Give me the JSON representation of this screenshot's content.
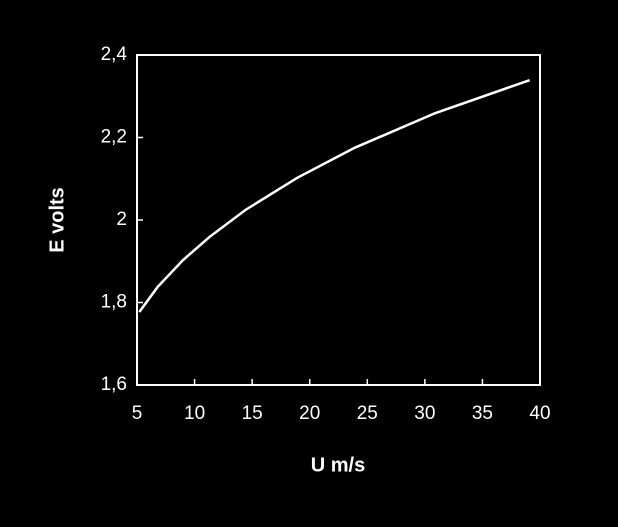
{
  "chart_data": {
    "type": "line",
    "x_label": "U m/s",
    "y_label": "E volts",
    "x": [
      5.2,
      6.8,
      9.0,
      11.3,
      14.4,
      18.9,
      23.9,
      30.9,
      39.1
    ],
    "series": [
      {
        "color": "#ffffff",
        "values": [
          1.777,
          1.838,
          1.903,
          1.959,
          2.024,
          2.102,
          2.175,
          2.259,
          2.339
        ]
      }
    ],
    "xlim": [
      5,
      40
    ],
    "xticks": [
      5,
      10,
      15,
      20,
      25,
      30,
      35,
      40
    ],
    "ylim": [
      1.6,
      2.4
    ],
    "yticks": [
      {
        "value": 1.6,
        "label": "1,6"
      },
      {
        "value": 1.8,
        "label": "1,8"
      },
      2,
      {
        "value": 2.2,
        "label": "2,2"
      },
      {
        "value": 2.4,
        "label": "2,4"
      }
    ]
  }
}
